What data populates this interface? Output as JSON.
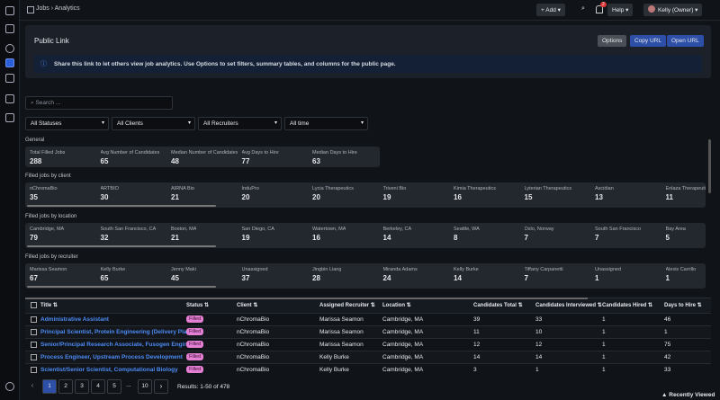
{
  "topbar": {
    "breadcrumb": [
      "Jobs",
      "Analytics"
    ],
    "add": "+ Add",
    "badge": "2",
    "help": "Help",
    "user": "Kelly (Owner)"
  },
  "public_link": {
    "title": "Public Link",
    "buttons": [
      "Options",
      "Copy URL",
      "Open URL"
    ],
    "info": "Share this link to let others view job analytics. Use Options to set filters, summary tables, and columns for the public page."
  },
  "search": "Search ...",
  "filters": [
    "All Statuses",
    "All Clients",
    "All Recruiters",
    "All time"
  ],
  "sections": [
    {
      "title": "General",
      "items": [
        {
          "label": "Total Filled Jobs",
          "value": "288"
        },
        {
          "label": "Avg Number of Candidates",
          "value": "65"
        },
        {
          "label": "Median Number of Candidates",
          "value": "48"
        },
        {
          "label": "Avg Days to Hire",
          "value": "77"
        },
        {
          "label": "Median Days to Hire",
          "value": "63"
        }
      ]
    },
    {
      "title": "Filled jobs by client",
      "items": [
        {
          "label": "nChromaBio",
          "value": "35"
        },
        {
          "label": "ARTBIO",
          "value": "30"
        },
        {
          "label": "AIRNA Bio",
          "value": "21"
        },
        {
          "label": "InduPro",
          "value": "20"
        },
        {
          "label": "Lycia Therapeutics",
          "value": "20"
        },
        {
          "label": "Triveni Bio",
          "value": "19"
        },
        {
          "label": "Kimia Therapeutics",
          "value": "16"
        },
        {
          "label": "Lyterian Therapeutics",
          "value": "15"
        },
        {
          "label": "Ascidian",
          "value": "13"
        },
        {
          "label": "Enlaza Therapeutics",
          "value": "11"
        }
      ]
    },
    {
      "title": "Filled jobs by location",
      "items": [
        {
          "label": "Cambridge, MA",
          "value": "79"
        },
        {
          "label": "South San Francisco, CA",
          "value": "32"
        },
        {
          "label": "Boston, MA",
          "value": "21"
        },
        {
          "label": "San Diego, CA",
          "value": "19"
        },
        {
          "label": "Watertown, MA",
          "value": "16"
        },
        {
          "label": "Berkeley, CA",
          "value": "14"
        },
        {
          "label": "Seattle, WA",
          "value": "8"
        },
        {
          "label": "Oslo, Norway",
          "value": "7"
        },
        {
          "label": "South San Francisco",
          "value": "7"
        },
        {
          "label": "Bay Area",
          "value": "5"
        }
      ]
    },
    {
      "title": "Filled jobs by recruiter",
      "items": [
        {
          "label": "Marissa Seamon",
          "value": "67"
        },
        {
          "label": "Kelly Burke",
          "value": "65"
        },
        {
          "label": "Jenny Maki",
          "value": "45"
        },
        {
          "label": "Unassigned",
          "value": "37"
        },
        {
          "label": "Jingbin Liang",
          "value": "28"
        },
        {
          "label": "Miranda Adams",
          "value": "24"
        },
        {
          "label": "Kelly Burke",
          "value": "14"
        },
        {
          "label": "Tiffany Carpanetti",
          "value": "7"
        },
        {
          "label": "Unassigned",
          "value": "1"
        },
        {
          "label": "Alexis Carrillo",
          "value": "1"
        }
      ]
    }
  ],
  "table": {
    "headers": [
      "Title",
      "Status",
      "Client",
      "Assigned Recruiter",
      "Location",
      "Candidates Total",
      "Candidates Interviewed",
      "Candidates Hired",
      "Days to Hire"
    ],
    "rows": [
      [
        "Administrative Assistant",
        "Filled",
        "nChromaBio",
        "Marissa Seamon",
        "Cambridge, MA",
        "39",
        "33",
        "1",
        "46"
      ],
      [
        "Principal Scientist, Protein Engineering (Delivery Platf...",
        "Filled",
        "nChromaBio",
        "Marissa Seamon",
        "Cambridge, MA",
        "11",
        "10",
        "1",
        "1"
      ],
      [
        "Senior/Principal Research Associate, Fusogen Engin...",
        "Filled",
        "nChromaBio",
        "Marissa Seamon",
        "Cambridge, MA",
        "12",
        "12",
        "1",
        "75"
      ],
      [
        "Process Engineer, Upstream Process Development",
        "Filled",
        "nChromaBio",
        "Kelly Burke",
        "Cambridge, MA",
        "14",
        "14",
        "1",
        "42"
      ],
      [
        "Scientist/Senior Scientist, Computational Biology",
        "Filled",
        "nChromaBio",
        "Kelly Burke",
        "Cambridge, MA",
        "3",
        "1",
        "1",
        "33"
      ]
    ]
  },
  "pagination": {
    "pages": [
      "1",
      "2",
      "3",
      "4",
      "5",
      "...",
      "10"
    ],
    "results": "Results: 1-50 of 478"
  },
  "recently_viewed": "Recently Viewed"
}
